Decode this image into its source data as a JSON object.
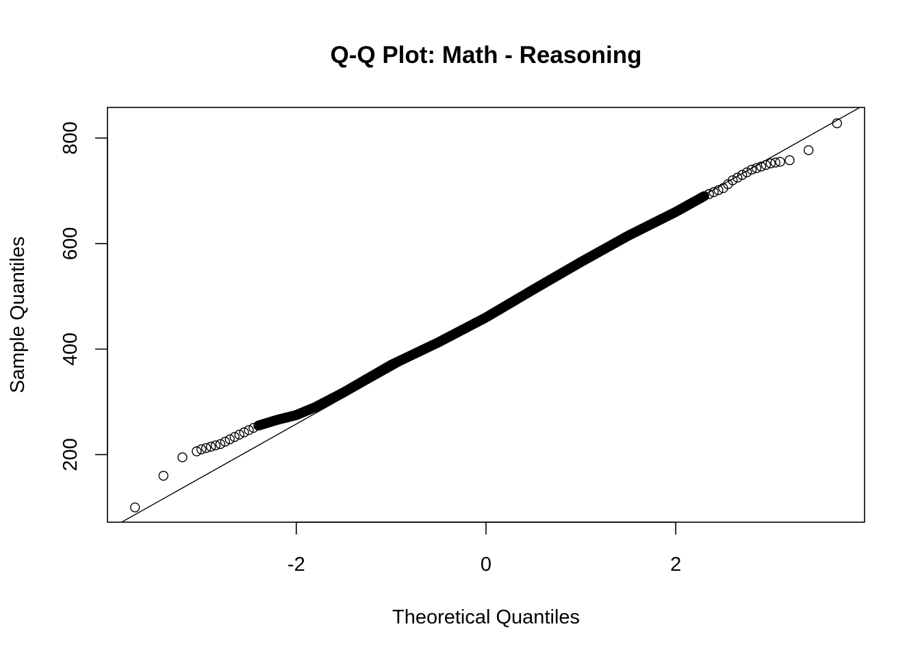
{
  "chart_data": {
    "type": "scatter",
    "title": "Q-Q Plot: Math - Reasoning",
    "xlabel": "Theoretical Quantiles",
    "ylabel": "Sample Quantiles",
    "xlim": [
      -3.99,
      3.99
    ],
    "ylim": [
      72,
      858
    ],
    "x_ticks": [
      -2,
      0,
      2
    ],
    "x_tick_labels": [
      "-2",
      "0",
      "2"
    ],
    "y_ticks": [
      200,
      400,
      600,
      800
    ],
    "y_tick_labels": [
      "200",
      "400",
      "600",
      "800"
    ],
    "grid": false,
    "legend": "none",
    "reference_line": {
      "intercept": 460,
      "slope": 101
    },
    "distribution_outline": [
      {
        "x": -3.7,
        "y": 100
      },
      {
        "x": -3.4,
        "y": 160
      },
      {
        "x": -3.2,
        "y": 195
      },
      {
        "x": -3.0,
        "y": 210
      },
      {
        "x": -2.8,
        "y": 220
      },
      {
        "x": -2.6,
        "y": 238
      },
      {
        "x": -2.4,
        "y": 255
      },
      {
        "x": -2.2,
        "y": 266
      },
      {
        "x": -2.0,
        "y": 275
      },
      {
        "x": -1.8,
        "y": 290
      },
      {
        "x": -1.5,
        "y": 318
      },
      {
        "x": -1.0,
        "y": 370
      },
      {
        "x": -0.5,
        "y": 413
      },
      {
        "x": 0.0,
        "y": 460
      },
      {
        "x": 0.5,
        "y": 513
      },
      {
        "x": 1.0,
        "y": 565
      },
      {
        "x": 1.5,
        "y": 615
      },
      {
        "x": 2.0,
        "y": 660
      },
      {
        "x": 2.3,
        "y": 690
      },
      {
        "x": 2.5,
        "y": 705
      },
      {
        "x": 2.6,
        "y": 720
      },
      {
        "x": 2.8,
        "y": 740
      },
      {
        "x": 3.0,
        "y": 752
      },
      {
        "x": 3.2,
        "y": 758
      },
      {
        "x": 3.4,
        "y": 777
      },
      {
        "x": 3.7,
        "y": 828
      }
    ],
    "bulk": {
      "x_min": -2.4,
      "x_max": 2.3,
      "count": 700
    },
    "color": "#000000"
  }
}
